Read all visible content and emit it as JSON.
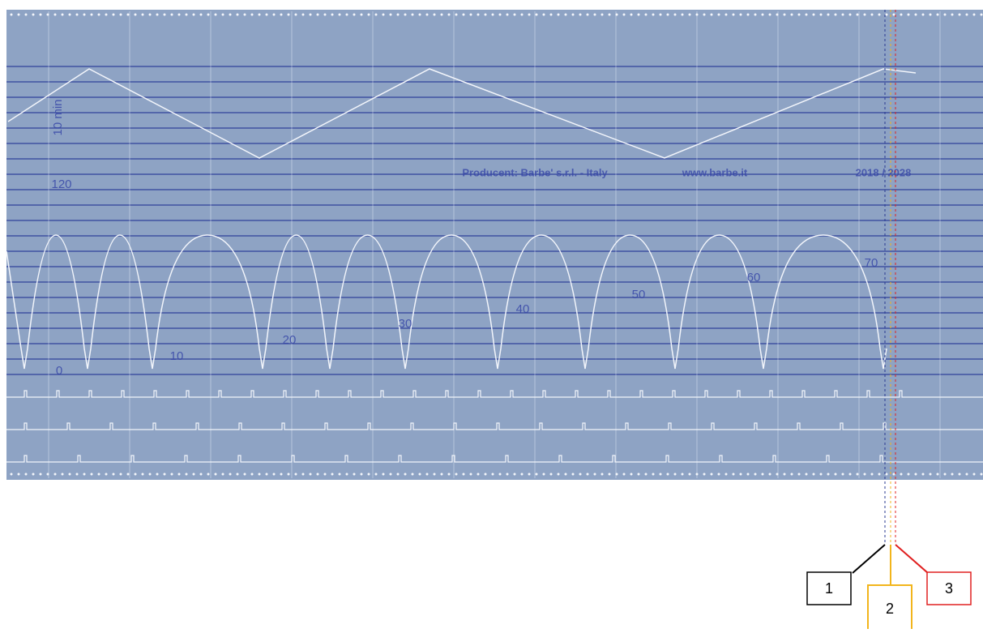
{
  "chart_paper": {
    "time_label": "10 min",
    "scale_top": "120",
    "scale_zero": "0",
    "trace_marks": [
      "10",
      "20",
      "30",
      "40",
      "50",
      "60",
      "70"
    ],
    "producer": "Producent: Barbe' s.r.l. - Italy",
    "website": "www.barbe.it",
    "validity": "2018 / 2028"
  },
  "callouts": [
    "1",
    "2",
    "3"
  ]
}
